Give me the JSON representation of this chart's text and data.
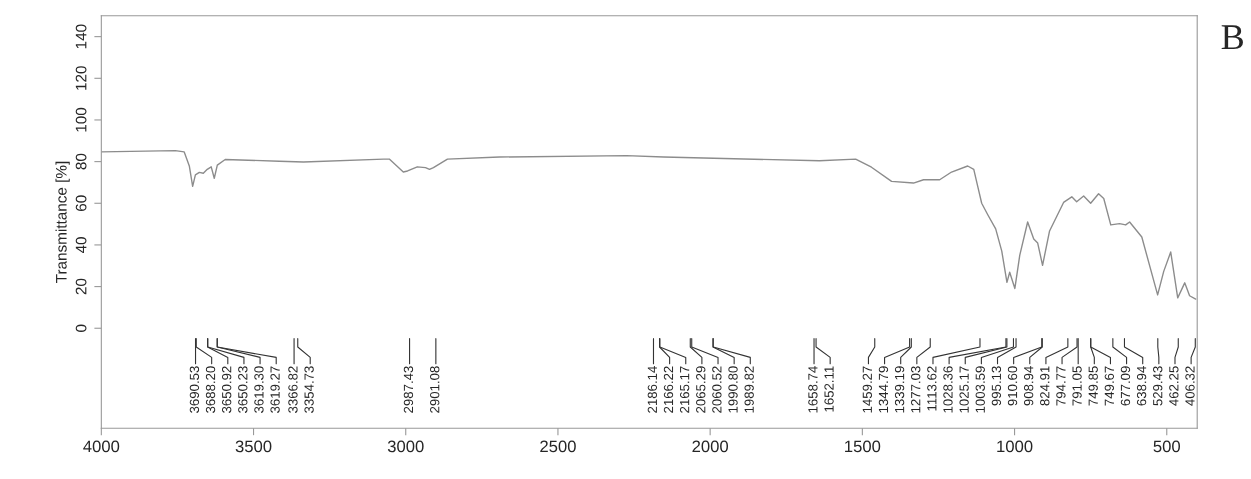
{
  "chart_data": {
    "type": "line",
    "ylabel": "Transmittance [%]",
    "xlim": [
      4000,
      400
    ],
    "xticks": [
      4000,
      3500,
      3000,
      2500,
      2000,
      1500,
      1000,
      500
    ],
    "ylim": [
      -48,
      150
    ],
    "yticks": [
      0,
      20,
      40,
      60,
      80,
      100,
      120,
      140
    ],
    "grid": false,
    "legend": false,
    "marker": "none",
    "line_style": "solid",
    "series": [
      {
        "color": "#8c8c8c",
        "x": [
          4000,
          3757,
          3728,
          3711,
          3700,
          3691,
          3678,
          3665,
          3652,
          3639,
          3629,
          3619,
          3593,
          3415,
          3336,
          3073,
          3054,
          3008,
          2994,
          2962,
          2935,
          2922,
          2909,
          2863,
          2692,
          2275,
          2153,
          1641,
          1522,
          1470,
          1404,
          1332,
          1299,
          1246,
          1207,
          1154,
          1134,
          1121,
          1108,
          1088,
          1062,
          1042,
          1025,
          1016,
          999,
          983,
          957,
          937,
          924,
          908,
          885,
          839,
          812,
          796,
          773,
          750,
          724,
          707,
          684,
          655,
          635,
          622,
          582,
          530,
          510,
          487,
          464,
          441,
          425,
          405
        ],
        "values": [
          84.7,
          85.3,
          84.7,
          77.9,
          68.1,
          73.6,
          74.8,
          74.4,
          76.3,
          77.5,
          72.0,
          78.3,
          81.0,
          80.2,
          79.8,
          81.2,
          81.2,
          75.0,
          75.5,
          77.5,
          77.1,
          76.3,
          77.1,
          81.2,
          82.2,
          82.9,
          82.2,
          80.4,
          81.2,
          77.3,
          70.5,
          69.7,
          71.3,
          71.3,
          75.0,
          77.9,
          76.3,
          68.1,
          60.0,
          54.5,
          47.7,
          37.0,
          22.0,
          26.9,
          19.1,
          35.0,
          51.0,
          42.8,
          40.9,
          30.2,
          46.7,
          60.4,
          63.1,
          60.7,
          63.5,
          60.0,
          64.6,
          62.3,
          49.6,
          50.2,
          49.6,
          51.0,
          43.8,
          16.0,
          27.3,
          36.6,
          14.6,
          21.8,
          15.6,
          14.0
        ]
      }
    ],
    "annotations": [
      "3690.53",
      "3688.20",
      "3650.92",
      "3650.23",
      "3619.30",
      "3619.27",
      "3366.82",
      "3354.73",
      "2987.43",
      "2901.08",
      "2186.14",
      "2166.22",
      "2165.17",
      "2065.29",
      "2060.52",
      "1990.80",
      "1989.82",
      "1658.74",
      "1652.11",
      "1459.27",
      "1344.79",
      "1339.19",
      "1277.03",
      "1113.62",
      "1028.36",
      "1025.17",
      "1003.59",
      "995.13",
      "910.60",
      "908.94",
      "824.91",
      "794.77",
      "791.05",
      "749.85",
      "749.67",
      "677.09",
      "638.94",
      "529.43",
      "462.25",
      "406.32",
      "B"
    ]
  }
}
